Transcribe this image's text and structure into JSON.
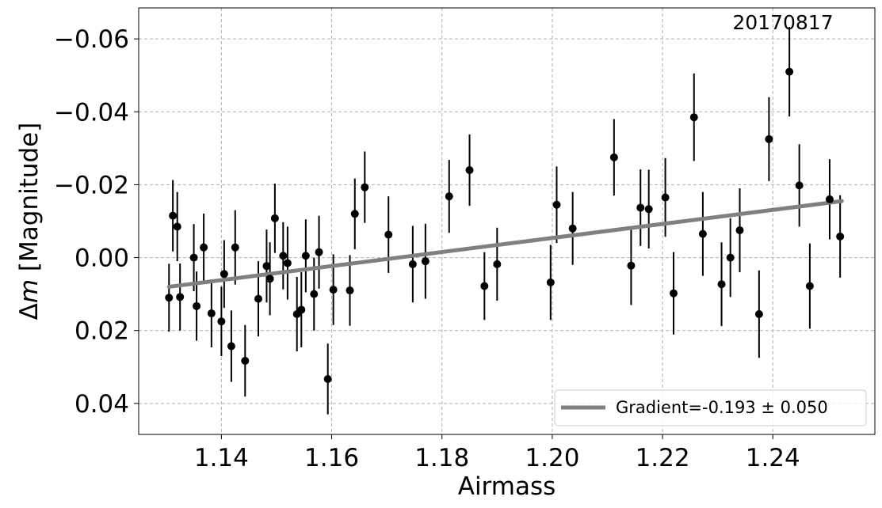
{
  "chart_data": {
    "type": "scatter",
    "xlabel": "Airmass",
    "ylabel_prefix": "Δ",
    "ylabel_var": "m",
    "ylabel_rest": " [Magnitude]",
    "annotation": "20170817",
    "xlim": [
      1.125,
      1.2585
    ],
    "ylim": [
      -0.0685,
      0.0485
    ],
    "y_inverted": true,
    "grid": true,
    "legend_position": "lower-right",
    "x_ticks": [
      1.14,
      1.16,
      1.18,
      1.2,
      1.22,
      1.24
    ],
    "x_tick_labels": [
      "1.14",
      "1.16",
      "1.18",
      "1.20",
      "1.22",
      "1.24"
    ],
    "y_ticks": [
      -0.06,
      -0.04,
      -0.02,
      0.0,
      0.02,
      0.04
    ],
    "y_tick_labels": [
      "−0.06",
      "−0.04",
      "−0.02",
      "0.00",
      "0.02",
      "0.04"
    ],
    "fit": {
      "label": "Gradient=-0.193 ± 0.050",
      "x": [
        1.1305,
        1.2525
      ],
      "y": [
        0.008,
        -0.0155
      ],
      "color": "#808080"
    },
    "points": {
      "color": "#000000",
      "x": [
        1.1305,
        1.1312,
        1.132,
        1.1325,
        1.135,
        1.1355,
        1.1368,
        1.1382,
        1.14,
        1.1405,
        1.1418,
        1.1425,
        1.1443,
        1.1467,
        1.1482,
        1.1488,
        1.1497,
        1.1512,
        1.152,
        1.1537,
        1.1545,
        1.1553,
        1.1568,
        1.1577,
        1.1593,
        1.1603,
        1.1633,
        1.1642,
        1.166,
        1.1703,
        1.1747,
        1.177,
        1.1813,
        1.185,
        1.1877,
        1.19,
        1.1997,
        1.2008,
        1.2037,
        1.2112,
        1.2143,
        1.216,
        1.2175,
        1.2205,
        1.222,
        1.2257,
        1.2273,
        1.2307,
        1.2323,
        1.234,
        1.2375,
        1.2393,
        1.243,
        1.2448,
        1.2467,
        1.2503,
        1.2522
      ],
      "y": [
        0.011,
        -0.0115,
        -0.0085,
        0.0108,
        0.0,
        0.0133,
        -0.0028,
        0.0153,
        0.0175,
        0.0045,
        0.0243,
        -0.0028,
        0.0283,
        0.0113,
        0.0023,
        0.0058,
        -0.0108,
        -0.0005,
        0.0015,
        0.0155,
        0.0143,
        -0.0005,
        0.01,
        -0.0015,
        0.0333,
        0.0088,
        0.009,
        -0.012,
        -0.0193,
        -0.0063,
        0.0018,
        0.001,
        -0.0168,
        -0.024,
        0.0078,
        0.0018,
        0.0068,
        -0.0145,
        -0.008,
        -0.0275,
        0.0022,
        -0.0137,
        -0.0133,
        -0.0165,
        0.0098,
        -0.0385,
        -0.0065,
        0.0073,
        0.0,
        -0.0075,
        0.0155,
        -0.0325,
        -0.051,
        -0.0198,
        0.0078,
        -0.016,
        -0.0058
      ],
      "err": [
        0.0093,
        0.0098,
        0.0095,
        0.0092,
        0.0092,
        0.0095,
        0.0093,
        0.0093,
        0.0095,
        0.0093,
        0.0098,
        0.0102,
        0.0098,
        0.0103,
        0.01,
        0.01,
        0.0095,
        0.0092,
        0.01,
        0.0102,
        0.0103,
        0.01,
        0.01,
        0.01,
        0.0097,
        0.0097,
        0.0097,
        0.0097,
        0.0098,
        0.0105,
        0.0105,
        0.0103,
        0.01,
        0.0098,
        0.0093,
        0.01,
        0.0103,
        0.0105,
        0.01,
        0.0105,
        0.0108,
        0.0105,
        0.0108,
        0.0108,
        0.0113,
        0.012,
        0.0115,
        0.0115,
        0.0108,
        0.0115,
        0.012,
        0.0115,
        0.0123,
        0.0113,
        0.0117,
        0.011,
        0.0113
      ]
    }
  }
}
